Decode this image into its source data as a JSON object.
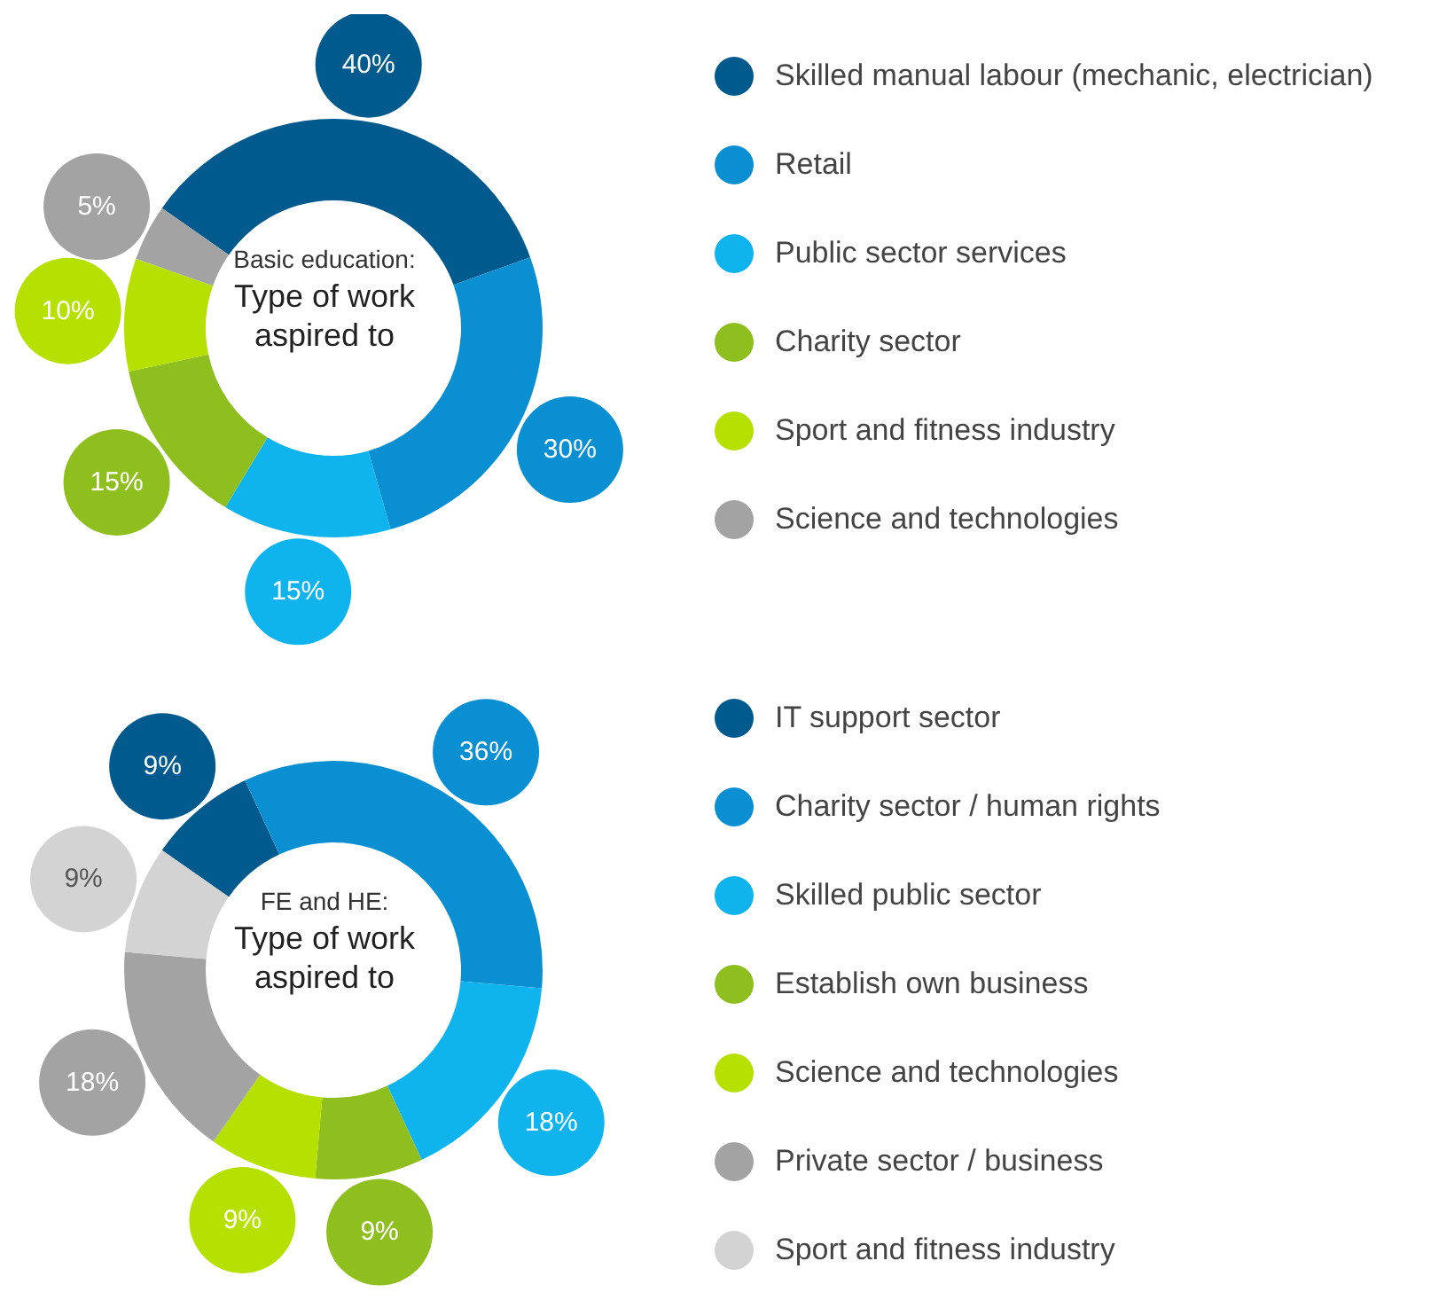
{
  "chart_data": [
    {
      "type": "donut",
      "title": "Basic education:",
      "subtitle": "Type of work aspired to",
      "categories": [
        "Skilled manual labour (mechanic, electrician)",
        "Retail",
        "Public sector services",
        "Charity sector",
        "Sport and fitness industry",
        "Science and technologies"
      ],
      "values": [
        40,
        30,
        15,
        15,
        10,
        5
      ],
      "value_labels": [
        "40%",
        "30%",
        "15%",
        "15%",
        "10%",
        "5%"
      ],
      "colors": [
        "#005a8e",
        "#0b8fd3",
        "#0fb4ef",
        "#8ebf1e",
        "#b6e000",
        "#a3a3a3"
      ],
      "legend": "right"
    },
    {
      "type": "donut",
      "title": "FE and HE:",
      "subtitle": "Type of work aspired to",
      "categories": [
        "IT support sector",
        "Charity sector / human rights",
        "Skilled public sector",
        "Establish own business",
        "Science and technologies",
        "Private sector / business",
        "Sport and fitness industry"
      ],
      "values": [
        9,
        36,
        18,
        9,
        9,
        18,
        9
      ],
      "value_labels": [
        "9%",
        "36%",
        "18%",
        "9%",
        "9%",
        "18%",
        "9%"
      ],
      "colors": [
        "#005a8e",
        "#0b8fd3",
        "#0fb4ef",
        "#8ebf1e",
        "#b6e000",
        "#a3a3a3",
        "#d3d3d3"
      ],
      "legend": "right"
    }
  ]
}
